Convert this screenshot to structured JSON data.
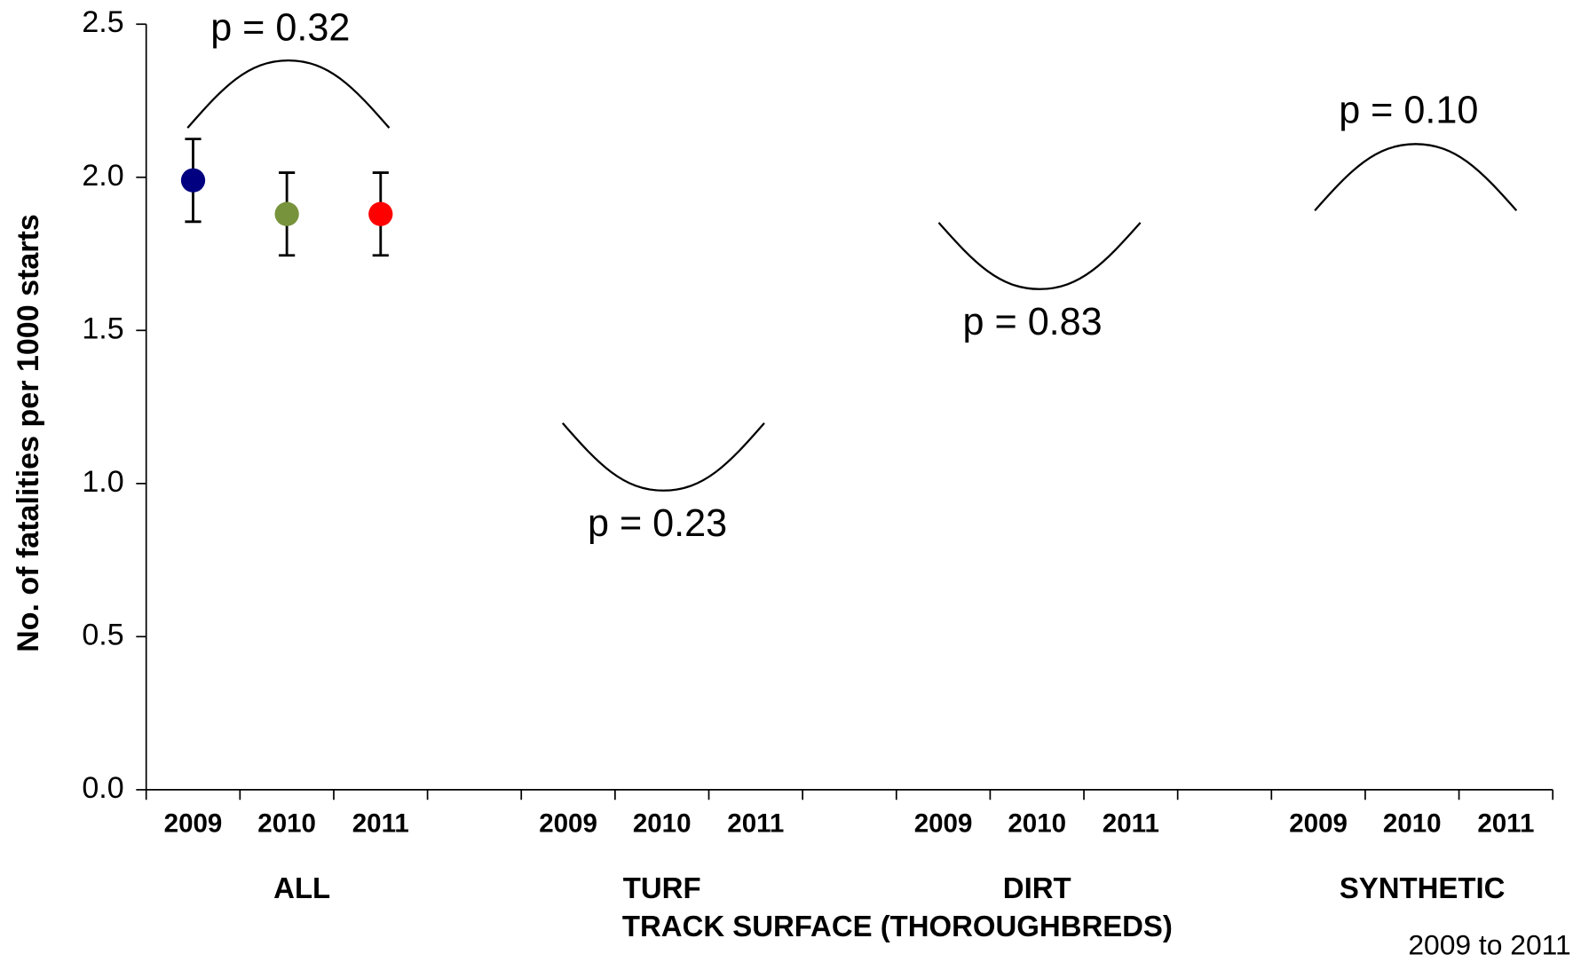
{
  "chart_data": {
    "type": "dot",
    "y_label": "No. of fatalities per 1000 starts",
    "x_label": "TRACK SURFACE (THOROUGHBREDS)",
    "note": "2009 to 2011",
    "groups": [
      "ALL",
      "TURF",
      "DIRT",
      "SYNTHETIC"
    ],
    "categories": [
      "2009",
      "2010",
      "2011",
      null,
      "2009",
      "2010",
      "2011",
      null,
      "2009",
      "2010",
      "2011",
      null,
      "2009",
      "2010",
      "2011"
    ],
    "values": [
      1.99,
      1.88,
      1.88,
      null,
      null,
      null,
      null,
      null,
      null,
      null,
      null,
      null,
      null,
      null,
      null
    ],
    "errors": [
      0.135,
      0.135,
      0.135,
      null,
      null,
      null,
      null,
      null,
      null,
      null,
      null,
      null,
      null,
      null,
      null
    ],
    "year_colors": [
      "#000080",
      "#77933c",
      "#ff0000"
    ],
    "annotations": [
      "p = 0.32",
      "p = 0.23",
      "p = 0.83",
      "p = 0.10"
    ],
    "ylim": [
      0,
      2.5
    ],
    "yticks": [
      {
        "value": 0,
        "label": "0.0"
      },
      {
        "value": 0.5,
        "label": "0.5"
      },
      {
        "value": 1,
        "label": "1.0"
      },
      {
        "value": 1.5,
        "label": "1.5"
      },
      {
        "value": 2,
        "label": "2.0"
      },
      {
        "value": 2.5,
        "label": "2.5"
      }
    ]
  }
}
